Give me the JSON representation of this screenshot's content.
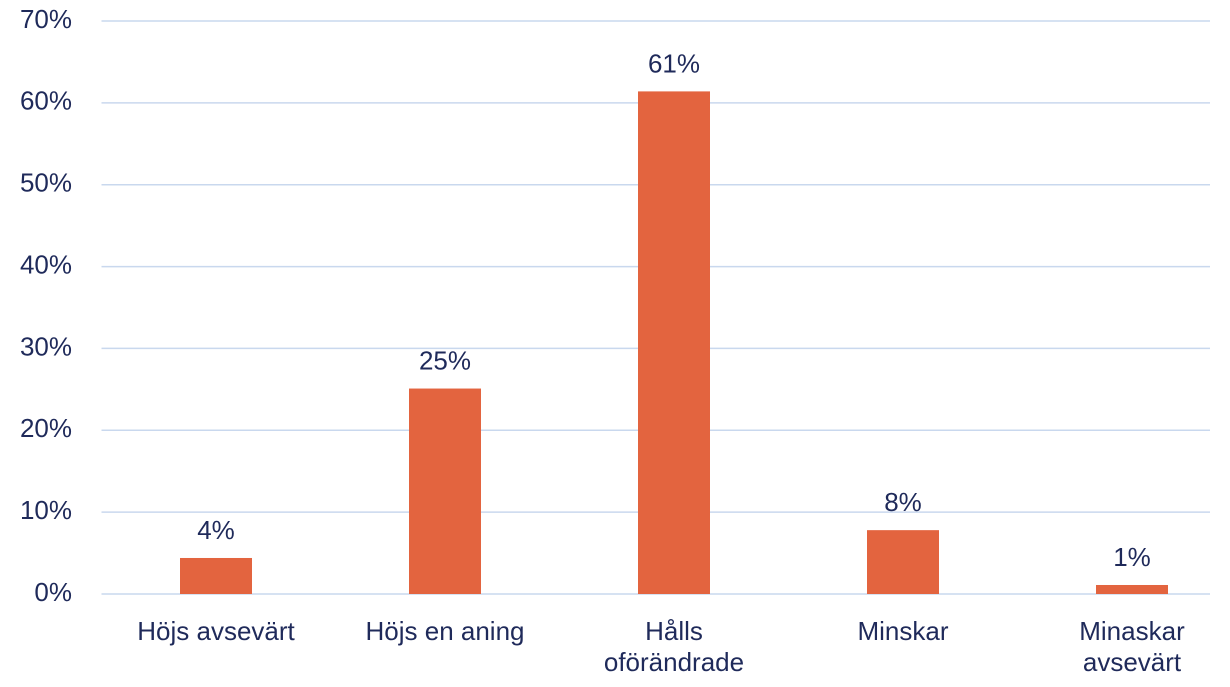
{
  "chart_data": {
    "type": "bar",
    "categories": [
      "Höjs avsevärt",
      "Höjs en aning",
      "Hålls oförändrade",
      "Minskar",
      "Minaskar avsevärt"
    ],
    "values": [
      4.4,
      25.1,
      61.4,
      7.8,
      1.1
    ],
    "value_labels": [
      "4%",
      "25%",
      "61%",
      "8%",
      "1%"
    ],
    "color": "#e3643f",
    "ylim": [
      0,
      70
    ],
    "yticks": [
      {
        "value": 0,
        "label": "0%"
      },
      {
        "value": 10,
        "label": "10%"
      },
      {
        "value": 20,
        "label": "20%"
      },
      {
        "value": 30,
        "label": "30%"
      },
      {
        "value": 40,
        "label": "40%"
      },
      {
        "value": 50,
        "label": "50%"
      },
      {
        "value": 60,
        "label": "60%"
      },
      {
        "value": 70,
        "label": "70%"
      }
    ],
    "grid": true
  }
}
